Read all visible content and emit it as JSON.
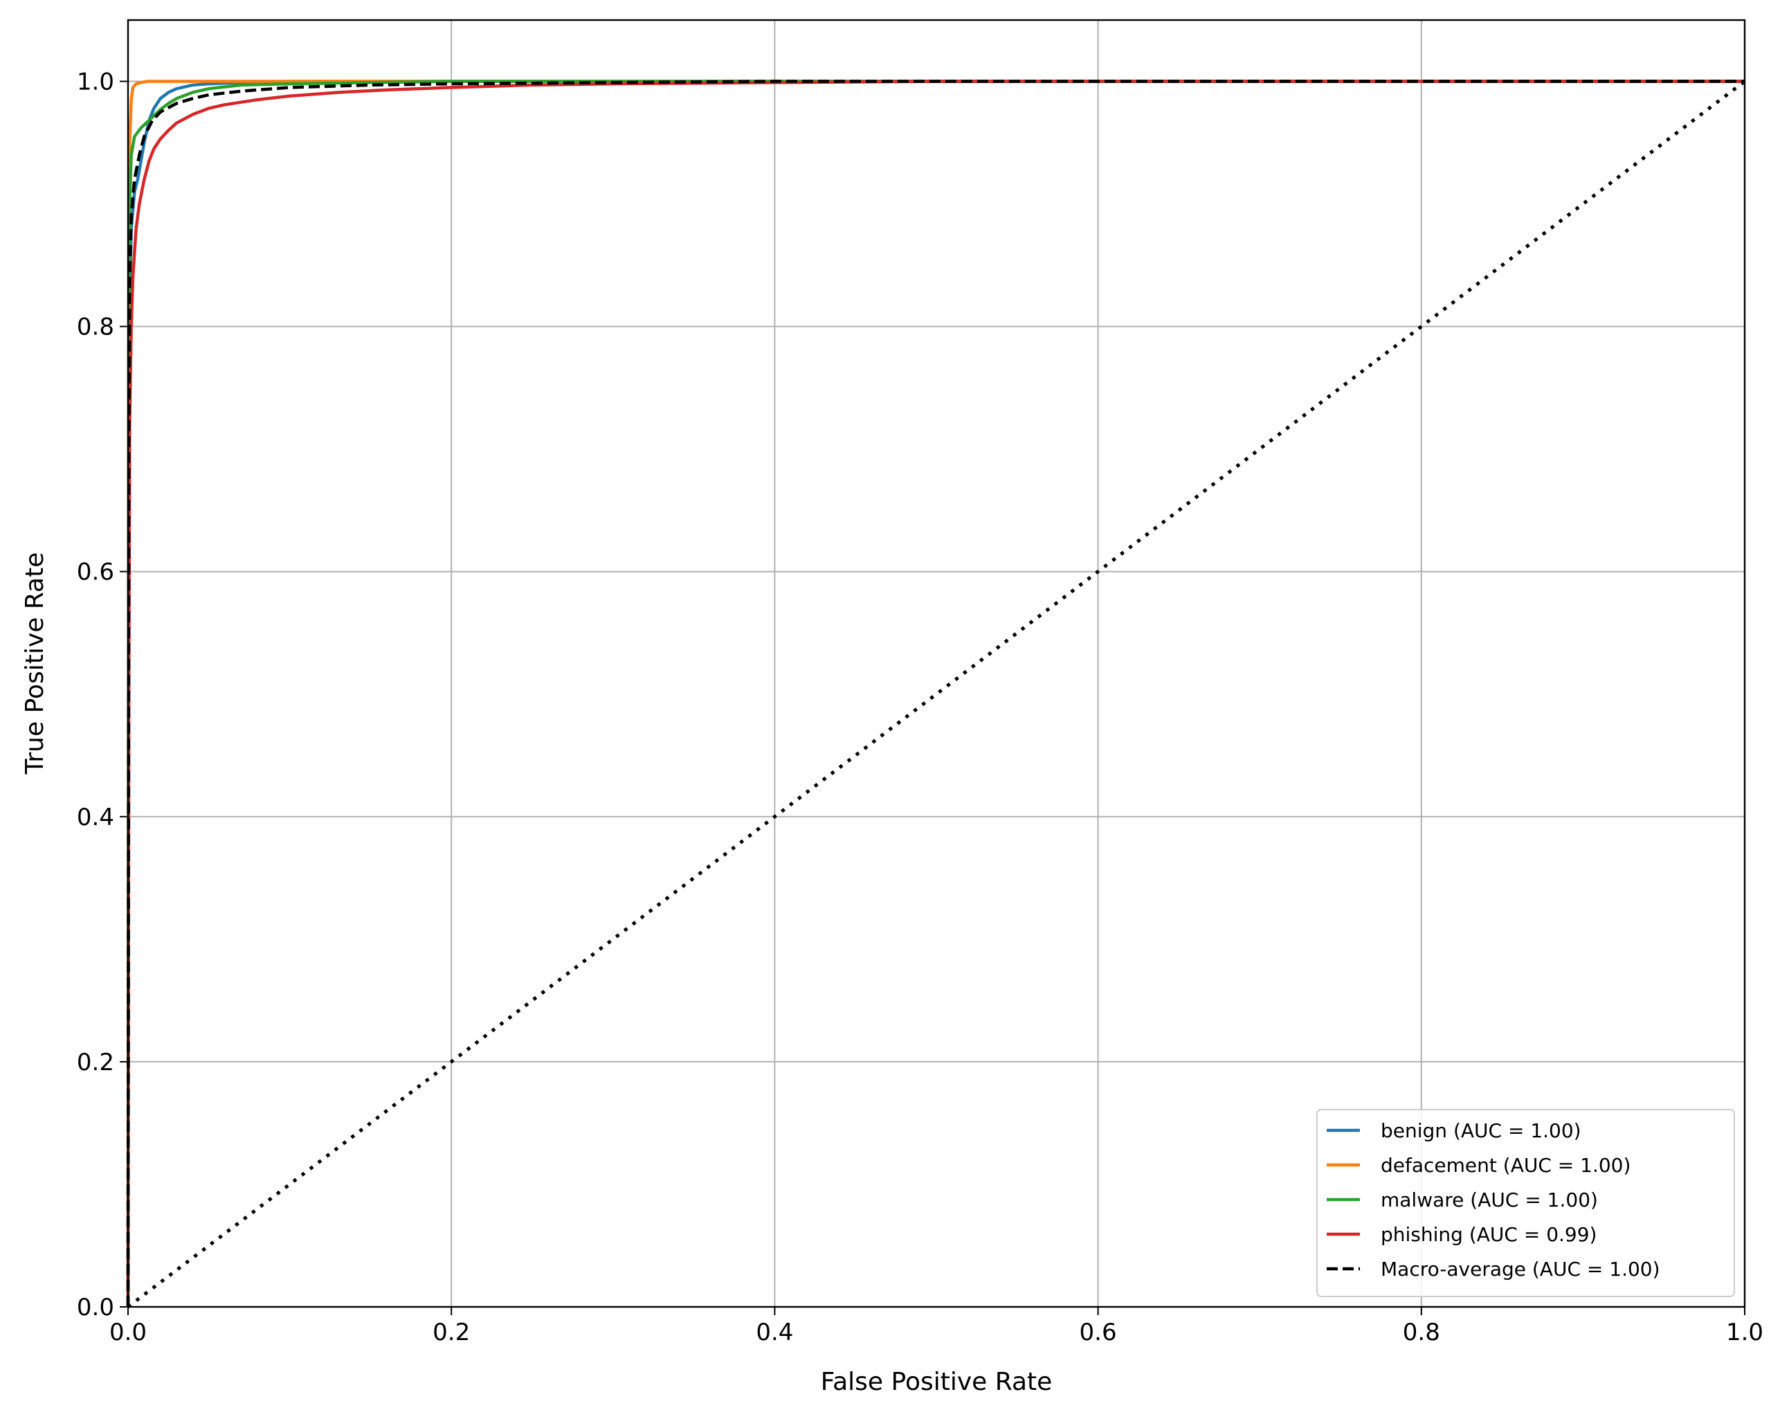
{
  "chart_data": {
    "type": "line",
    "title": "",
    "xlabel": "False Positive Rate",
    "ylabel": "True Positive Rate",
    "xlim": [
      0,
      1
    ],
    "ylim": [
      0,
      1.05
    ],
    "xticks": [
      0,
      0.2,
      0.4,
      0.6,
      0.8,
      1.0
    ],
    "xtick_labels": [
      "0.0",
      "0.2",
      "0.4",
      "0.6",
      "0.8",
      "1.0"
    ],
    "yticks": [
      0,
      0.2,
      0.4,
      0.6,
      0.8,
      1.0
    ],
    "ytick_labels": [
      "0.0",
      "0.2",
      "0.4",
      "0.6",
      "0.8",
      "1.0"
    ],
    "grid": true,
    "legend_position": "lower-right",
    "series": [
      {
        "name": "benign (AUC = 1.00)",
        "color": "#1f77b4",
        "style": "solid",
        "x": [
          0,
          0.0005,
          0.001,
          0.002,
          0.004,
          0.006,
          0.008,
          0.01,
          0.013,
          0.016,
          0.02,
          0.025,
          0.03,
          0.04,
          0.05,
          0.07,
          0.1,
          0.2,
          0.4,
          1.0
        ],
        "y": [
          0,
          0.6,
          0.82,
          0.88,
          0.91,
          0.92,
          0.935,
          0.95,
          0.968,
          0.978,
          0.986,
          0.991,
          0.994,
          0.997,
          0.998,
          0.999,
          1.0,
          1.0,
          1.0,
          1.0
        ]
      },
      {
        "name": "defacement (AUC = 1.00)",
        "color": "#ff7f0e",
        "style": "solid",
        "x": [
          0,
          0.0005,
          0.001,
          0.002,
          0.003,
          0.005,
          0.008,
          0.012,
          0.02,
          0.05,
          0.2,
          1.0
        ],
        "y": [
          0,
          0.85,
          0.95,
          0.985,
          0.995,
          0.998,
          0.999,
          1.0,
          1.0,
          1.0,
          1.0,
          1.0
        ]
      },
      {
        "name": "malware (AUC = 1.00)",
        "color": "#2ca02c",
        "style": "solid",
        "x": [
          0,
          0.0005,
          0.001,
          0.002,
          0.004,
          0.008,
          0.012,
          0.016,
          0.02,
          0.025,
          0.03,
          0.04,
          0.05,
          0.07,
          0.1,
          0.15,
          0.2,
          0.3,
          1.0
        ],
        "y": [
          0,
          0.8,
          0.9,
          0.94,
          0.955,
          0.962,
          0.967,
          0.972,
          0.977,
          0.982,
          0.986,
          0.991,
          0.994,
          0.997,
          0.998,
          0.999,
          1.0,
          1.0,
          1.0
        ]
      },
      {
        "name": "phishing (AUC = 0.99)",
        "color": "#d62728",
        "style": "solid",
        "x": [
          0,
          0.0005,
          0.001,
          0.002,
          0.003,
          0.005,
          0.007,
          0.01,
          0.013,
          0.016,
          0.02,
          0.025,
          0.03,
          0.04,
          0.05,
          0.06,
          0.08,
          0.1,
          0.13,
          0.16,
          0.2,
          0.25,
          0.3,
          0.4,
          0.5,
          1.0
        ],
        "y": [
          0,
          0.5,
          0.72,
          0.8,
          0.84,
          0.88,
          0.9,
          0.92,
          0.935,
          0.945,
          0.953,
          0.96,
          0.966,
          0.973,
          0.978,
          0.981,
          0.985,
          0.988,
          0.991,
          0.993,
          0.995,
          0.997,
          0.998,
          0.999,
          1.0,
          1.0
        ]
      },
      {
        "name": "Macro-average (AUC = 1.00)",
        "color": "#000000",
        "style": "dashed",
        "x": [
          0,
          0.0005,
          0.001,
          0.002,
          0.004,
          0.007,
          0.01,
          0.015,
          0.02,
          0.03,
          0.04,
          0.05,
          0.07,
          0.1,
          0.15,
          0.2,
          0.3,
          0.4,
          1.0
        ],
        "y": [
          0,
          0.7,
          0.84,
          0.89,
          0.92,
          0.94,
          0.955,
          0.968,
          0.975,
          0.982,
          0.986,
          0.989,
          0.992,
          0.995,
          0.997,
          0.998,
          0.999,
          1.0,
          1.0
        ]
      }
    ],
    "reference_line": {
      "x": [
        0,
        1
      ],
      "y": [
        0,
        1
      ],
      "color": "#000000",
      "style": "dotted"
    }
  }
}
